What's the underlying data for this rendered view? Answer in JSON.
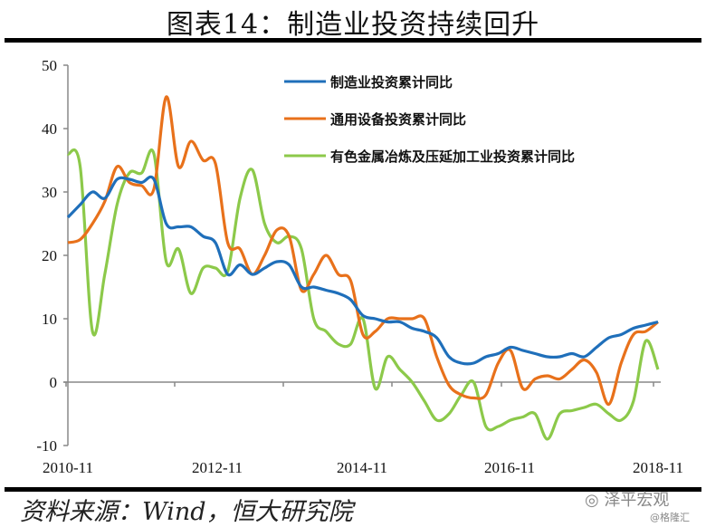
{
  "header": {
    "title": "图表14：制造业投资持续回升"
  },
  "footer": {
    "source": "资料来源：Wind，恒大研究院",
    "watermark": "泽平宏观",
    "watermark_sub": "@格隆汇"
  },
  "chart_data": {
    "type": "line",
    "title": "图表14：制造业投资持续回升",
    "xlabel": "",
    "ylabel": "",
    "ylim": [
      -10,
      50
    ],
    "yticks": [
      -10,
      0,
      10,
      20,
      30,
      40,
      50
    ],
    "xtick_labels": [
      "2010-11",
      "2012-11",
      "2014-11",
      "2016-11",
      "2018-11"
    ],
    "grid": false,
    "legend_position": "upper right",
    "x_months_from_2010_11": [
      0,
      2,
      4,
      6,
      8,
      10,
      12,
      14,
      16,
      18,
      20,
      22,
      24,
      26,
      28,
      30,
      32,
      34,
      36,
      38,
      40,
      42,
      44,
      46,
      48,
      50,
      52,
      54,
      56,
      58,
      60,
      62,
      64,
      66,
      68,
      70,
      72,
      74,
      76,
      78,
      80,
      82,
      84,
      86,
      88,
      90,
      92,
      94,
      96
    ],
    "series": [
      {
        "name": "制造业投资累计同比",
        "color": "#1f6fba",
        "values": [
          26,
          28,
          30,
          29,
          32,
          32,
          31.5,
          32,
          25,
          24.5,
          24.5,
          23,
          22,
          17,
          18.5,
          17,
          18,
          19,
          18.5,
          15,
          15,
          14.5,
          14,
          13,
          10.5,
          10,
          9.5,
          9.5,
          8.5,
          8,
          7,
          4,
          3,
          3,
          4,
          4.5,
          5.5,
          5,
          4.5,
          4,
          4,
          4.5,
          4,
          5.5,
          7,
          7.5,
          8.5,
          9,
          9.5
        ]
      },
      {
        "name": "通用设备投资累计同比",
        "color": "#e8711b",
        "values": [
          22,
          22.5,
          25,
          28.5,
          34,
          31.5,
          31,
          30.5,
          45,
          34,
          38,
          35,
          34.5,
          22,
          21,
          17,
          20,
          24,
          23,
          14.5,
          17,
          20,
          17,
          16,
          7.5,
          8,
          10,
          10,
          10,
          10,
          4,
          -0.5,
          -2,
          -2.5,
          -2,
          3,
          5,
          -1,
          0.5,
          1,
          0.5,
          2,
          3.5,
          1.5,
          -3.5,
          3,
          7.5,
          8,
          9.5
        ]
      },
      {
        "name": "有色金属冶炼及压延加工业投资累计同比",
        "color": "#8cc94a",
        "values": [
          36,
          34,
          8,
          17,
          28,
          33,
          33,
          36,
          19,
          21,
          14,
          18,
          18,
          17.5,
          29,
          33.5,
          25,
          22,
          23,
          21,
          10,
          8,
          6,
          6,
          10,
          -1,
          4,
          2,
          0,
          -3,
          -6,
          -5,
          -2,
          0,
          -7,
          -7,
          -6,
          -5.5,
          -5,
          -9,
          -5,
          -4.5,
          -4,
          -3.5,
          -5,
          -6,
          -3,
          6.5,
          2
        ]
      }
    ]
  },
  "legend": {
    "items": [
      {
        "label": "制造业投资累计同比",
        "color": "#1f6fba"
      },
      {
        "label": "通用设备投资累计同比",
        "color": "#e8711b"
      },
      {
        "label": "有色金属冶炼及压延加工业投资累计同比",
        "color": "#8cc94a"
      }
    ]
  }
}
